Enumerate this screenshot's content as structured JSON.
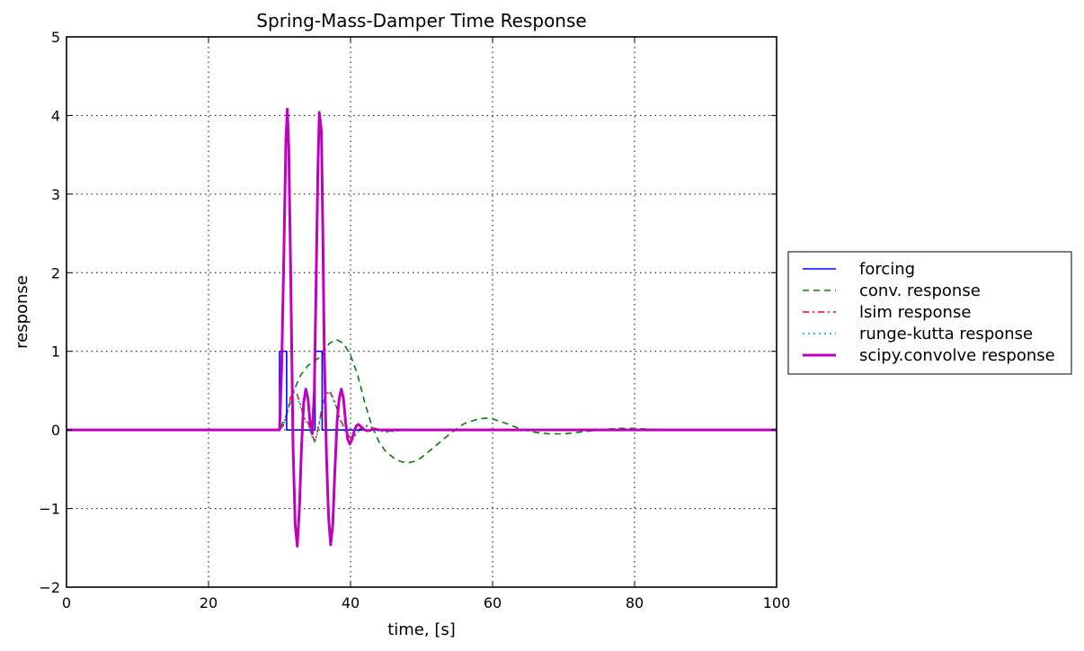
{
  "chart_data": {
    "type": "line",
    "title": "Spring-Mass-Damper Time Response",
    "xlabel": "time, [s]",
    "ylabel": "response",
    "xlim": [
      0,
      100
    ],
    "ylim": [
      -2,
      5
    ],
    "xticks": [
      0,
      20,
      40,
      60,
      80,
      100
    ],
    "xtick_labels": [
      "0",
      "20",
      "40",
      "60",
      "80",
      "100"
    ],
    "yticks": [
      -2,
      -1,
      0,
      1,
      2,
      3,
      4,
      5
    ],
    "ytick_labels": [
      "−2",
      "−1",
      "0",
      "1",
      "2",
      "3",
      "4",
      "5"
    ],
    "grid": true,
    "legend_position": "outside right",
    "series": [
      {
        "name": "forcing",
        "color": "#0000ff",
        "style": "solid",
        "x": [
          0,
          30,
          30,
          31,
          31,
          35,
          35,
          36,
          36,
          100
        ],
        "y": [
          0,
          0,
          1,
          1,
          0,
          0,
          1,
          1,
          0,
          0
        ]
      },
      {
        "name": "conv. response",
        "color": "#008000",
        "style": "dashed",
        "x": [
          0,
          30,
          31,
          32,
          33,
          34,
          35,
          36,
          37,
          38,
          39,
          40,
          41,
          42,
          43,
          44,
          45,
          46,
          47,
          48,
          49,
          50,
          52,
          54,
          56,
          58,
          59,
          60,
          62,
          64,
          66,
          68,
          70,
          72,
          74,
          76,
          78,
          80,
          82,
          84,
          86,
          88,
          90,
          100
        ],
        "y": [
          0,
          0,
          0.2,
          0.5,
          0.7,
          0.82,
          0.88,
          0.95,
          1.1,
          1.15,
          1.1,
          0.95,
          0.7,
          0.35,
          0.05,
          -0.15,
          -0.28,
          -0.35,
          -0.4,
          -0.42,
          -0.4,
          -0.35,
          -0.2,
          -0.05,
          0.08,
          0.14,
          0.15,
          0.14,
          0.08,
          0.01,
          -0.03,
          -0.05,
          -0.05,
          -0.03,
          -0.01,
          0.01,
          0.02,
          0.02,
          0.01,
          0.0,
          0.0,
          0.0,
          0.0,
          0.0
        ]
      },
      {
        "name": "lsim response",
        "color": "#ff0000",
        "style": "dashdot",
        "x": [
          0,
          30,
          30.5,
          31,
          31.5,
          32,
          32.5,
          33,
          33.5,
          34,
          34.5,
          35,
          35.5,
          36,
          36.5,
          37,
          37.5,
          38,
          38.5,
          39,
          39.5,
          40,
          40.5,
          41,
          41.5,
          42,
          42.5,
          43,
          44,
          45,
          46,
          47,
          48,
          50,
          100
        ],
        "y": [
          0,
          0,
          0.05,
          0.2,
          0.4,
          0.5,
          0.45,
          0.3,
          0.15,
          0.1,
          -0.05,
          -0.15,
          0.05,
          0.3,
          0.45,
          0.5,
          0.42,
          0.3,
          0.15,
          0.05,
          -0.05,
          -0.1,
          -0.08,
          -0.02,
          0.03,
          0.06,
          0.05,
          0.03,
          0.0,
          -0.02,
          -0.01,
          0.0,
          0.0,
          0.0,
          0.0
        ]
      },
      {
        "name": "runge-kutta response",
        "color": "#00bfbf",
        "style": "dotted",
        "x": [
          0,
          30,
          30.5,
          31,
          31.5,
          32,
          32.5,
          33,
          33.5,
          34,
          34.5,
          35,
          35.5,
          36,
          36.5,
          37,
          37.5,
          38,
          38.5,
          39,
          39.5,
          40,
          40.5,
          41,
          41.5,
          42,
          42.5,
          43,
          44,
          45,
          46,
          47,
          48,
          50,
          100
        ],
        "y": [
          0,
          0,
          0.05,
          0.18,
          0.38,
          0.48,
          0.43,
          0.28,
          0.13,
          0.08,
          -0.07,
          -0.17,
          0.03,
          0.28,
          0.43,
          0.48,
          0.4,
          0.28,
          0.13,
          0.03,
          -0.07,
          -0.12,
          -0.09,
          -0.03,
          0.02,
          0.05,
          0.04,
          0.02,
          -0.01,
          -0.03,
          -0.02,
          -0.01,
          0.0,
          0.0,
          0.0
        ]
      },
      {
        "name": "scipy.convolve response",
        "color": "#bf00bf",
        "style": "solid-thick",
        "x": [
          0,
          30,
          30.3,
          30.6,
          30.9,
          31.1,
          31.3,
          31.6,
          31.9,
          32.2,
          32.5,
          32.8,
          33.1,
          33.4,
          33.7,
          34,
          34.3,
          34.6,
          34.9,
          35.1,
          35.4,
          35.6,
          35.9,
          36.1,
          36.3,
          36.6,
          36.9,
          37.2,
          37.5,
          37.8,
          38.1,
          38.4,
          38.7,
          39,
          39.3,
          39.6,
          39.9,
          40.2,
          40.5,
          40.8,
          41.1,
          41.4,
          41.7,
          42,
          42.3,
          42.6,
          42.9,
          43.2,
          43.5,
          44,
          44.5,
          45,
          46,
          100
        ],
        "y": [
          0,
          0,
          0.8,
          2.2,
          3.7,
          4.08,
          3.6,
          1.8,
          -0.2,
          -1.2,
          -1.48,
          -1.0,
          -0.2,
          0.35,
          0.52,
          0.4,
          0.1,
          -0.05,
          0.5,
          1.6,
          3.3,
          4.04,
          3.8,
          2.5,
          1.0,
          -0.3,
          -1.1,
          -1.46,
          -1.2,
          -0.5,
          0.1,
          0.4,
          0.52,
          0.4,
          0.1,
          -0.12,
          -0.18,
          -0.12,
          -0.02,
          0.05,
          0.07,
          0.05,
          0.02,
          0.0,
          -0.01,
          -0.01,
          0.0,
          0.01,
          0.01,
          0.0,
          0.0,
          0.0,
          0.0,
          0.0
        ]
      }
    ]
  }
}
